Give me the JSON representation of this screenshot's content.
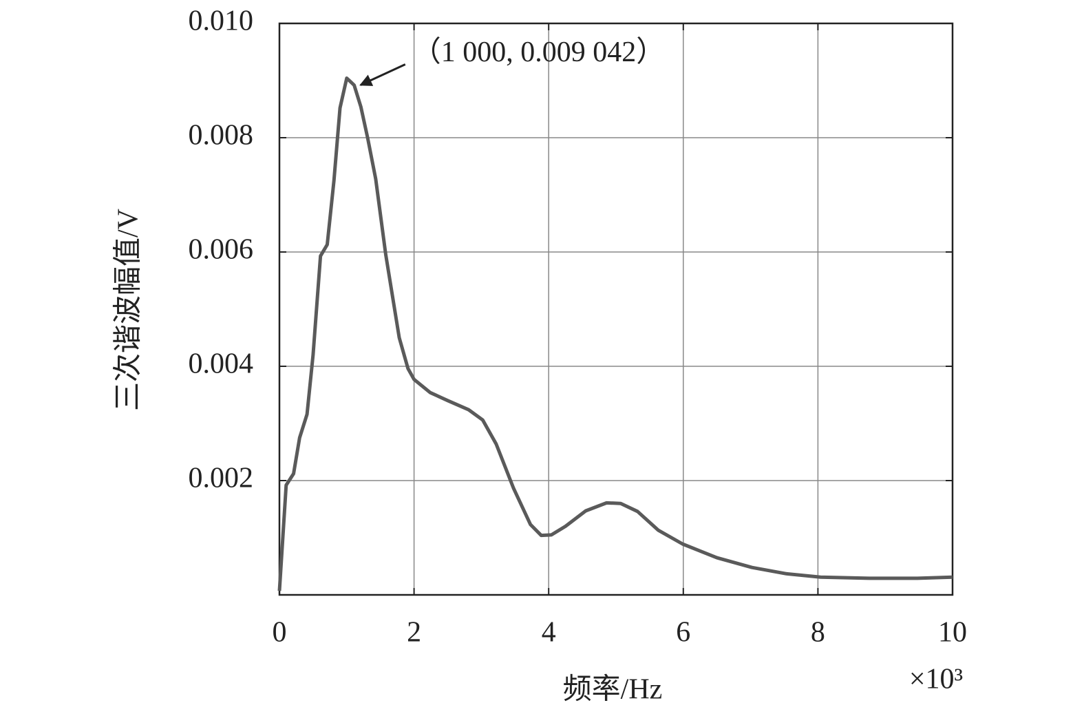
{
  "chart_data": {
    "type": "line",
    "x_label": "频率/Hz",
    "y_label": "三次谐波幅值/V",
    "x_multiplier": "×10³",
    "annotations": [
      {
        "text": "（1 000, 0.009 042）",
        "x": 1,
        "y": 0.009042
      }
    ],
    "xlim": [
      0,
      10
    ],
    "xticks": [
      0,
      2,
      4,
      6,
      8,
      10
    ],
    "ylim": [
      0,
      0.01
    ],
    "yticks": [
      0.002,
      0.004,
      0.006,
      0.008,
      {
        "value": 0.01,
        "label": "0.010"
      }
    ],
    "grid": true,
    "series": [
      {
        "name": "三次谐波幅值",
        "color": "#5a5a5a",
        "x": [
          0,
          0.1,
          0.21,
          0.3,
          0.41,
          0.5,
          0.61,
          0.71,
          0.81,
          0.9,
          1,
          1.11,
          1.21,
          1.31,
          1.43,
          1.58,
          1.78,
          1.91,
          2,
          2.24,
          2.5,
          2.81,
          3.02,
          3.22,
          3.48,
          3.73,
          3.89,
          4.04,
          4.25,
          4.55,
          4.86,
          5.07,
          5.32,
          5.63,
          5.99,
          6.5,
          7.02,
          7.53,
          8.04,
          8.76,
          9.48,
          10
        ],
        "values": [
          7e-05,
          0.00192,
          0.00212,
          0.00275,
          0.00316,
          0.0042,
          0.00593,
          0.00613,
          0.00725,
          0.00852,
          0.009042,
          0.00892,
          0.00854,
          0.008,
          0.00728,
          0.00595,
          0.0045,
          0.00396,
          0.00377,
          0.00354,
          0.0034,
          0.00324,
          0.00306,
          0.00264,
          0.00186,
          0.00123,
          0.00104,
          0.00105,
          0.0012,
          0.00147,
          0.00161,
          0.0016,
          0.00146,
          0.00113,
          0.00089,
          0.00065,
          0.00048,
          0.00037,
          0.00031,
          0.00029,
          0.00029,
          0.00031
        ]
      }
    ]
  }
}
